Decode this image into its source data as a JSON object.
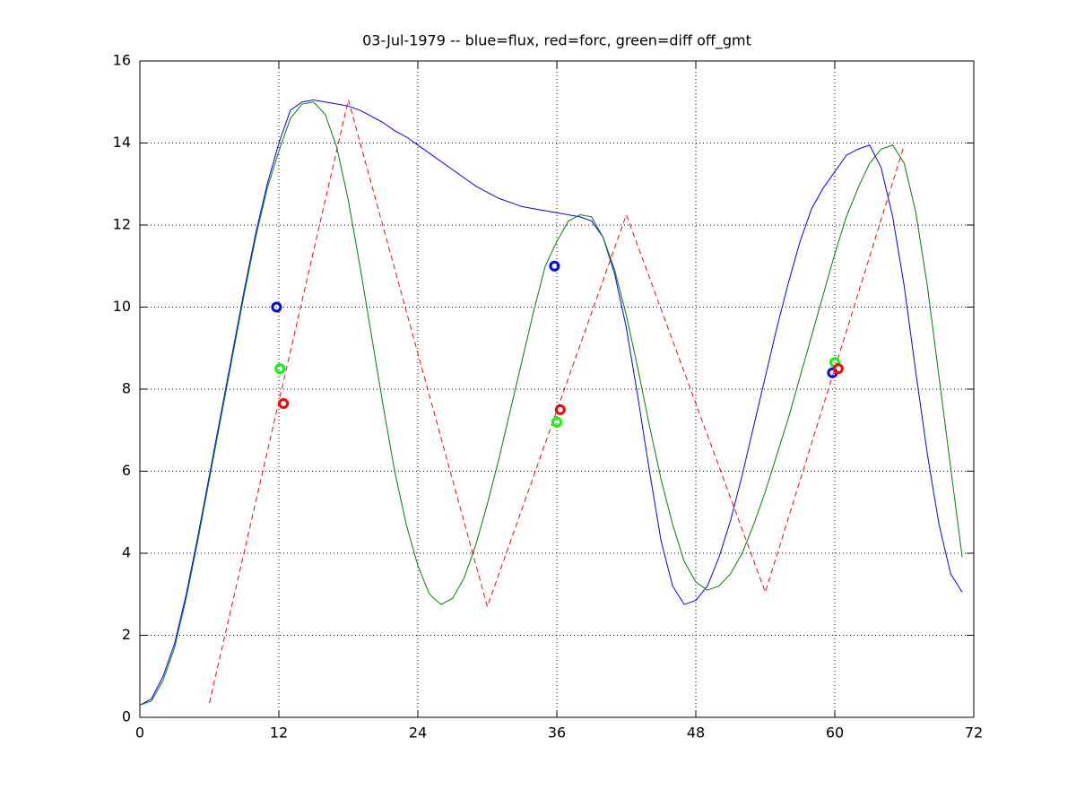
{
  "chart_data": {
    "type": "line",
    "title": "03-Jul-1979 -- blue=flux, red=forc, green=diff off_gmt",
    "x": [
      0,
      1,
      2,
      3,
      4,
      5,
      6,
      7,
      8,
      9,
      10,
      11,
      12,
      13,
      14,
      15,
      16,
      17,
      18,
      19,
      20,
      21,
      22,
      23,
      24,
      25,
      26,
      27,
      28,
      29,
      30,
      31,
      32,
      33,
      34,
      35,
      36,
      37,
      38,
      39,
      40,
      41,
      42,
      43,
      44,
      45,
      46,
      47,
      48,
      49,
      50,
      51,
      52,
      53,
      54,
      55,
      56,
      57,
      58,
      59,
      60,
      61,
      62,
      63,
      64,
      65,
      66,
      67,
      68,
      69,
      70,
      71
    ],
    "series": [
      {
        "color": "#0000ff",
        "style": "solid",
        "values": [
          0.3,
          0.45,
          1.0,
          1.8,
          3.0,
          4.4,
          5.9,
          7.4,
          8.9,
          10.4,
          11.8,
          13.0,
          14.0,
          14.8,
          15.0,
          15.05,
          15.0,
          14.95,
          14.9,
          14.8,
          14.65,
          14.5,
          14.3,
          14.15,
          13.95,
          13.75,
          13.55,
          13.35,
          13.15,
          12.95,
          12.8,
          12.65,
          12.55,
          12.45,
          12.4,
          12.35,
          12.3,
          12.25,
          12.2,
          12.1,
          11.7,
          10.8,
          9.5,
          7.8,
          6.0,
          4.3,
          3.2,
          2.75,
          2.85,
          3.2,
          3.9,
          4.8,
          5.9,
          7.1,
          8.3,
          9.5,
          10.6,
          11.6,
          12.4,
          12.9,
          13.3,
          13.7,
          13.85,
          13.95,
          13.4,
          12.2,
          10.5,
          8.4,
          6.4,
          4.7,
          3.5,
          3.05
        ]
      },
      {
        "color": "#008000",
        "style": "solid",
        "values": [
          0.3,
          0.4,
          0.9,
          1.7,
          2.9,
          4.3,
          5.8,
          7.3,
          8.8,
          10.3,
          11.7,
          12.9,
          13.8,
          14.6,
          14.95,
          15.0,
          14.7,
          13.9,
          12.6,
          11.0,
          9.3,
          7.6,
          6.0,
          4.7,
          3.7,
          3.0,
          2.75,
          2.9,
          3.4,
          4.2,
          5.2,
          6.3,
          7.5,
          8.7,
          9.9,
          11.0,
          11.6,
          12.1,
          12.25,
          12.2,
          11.7,
          10.9,
          9.8,
          8.5,
          7.1,
          5.8,
          4.7,
          3.8,
          3.3,
          3.1,
          3.2,
          3.5,
          4.0,
          4.7,
          5.5,
          6.4,
          7.3,
          8.3,
          9.3,
          10.3,
          11.3,
          12.2,
          12.9,
          13.5,
          13.85,
          13.95,
          13.5,
          12.3,
          10.5,
          8.3,
          6.1,
          3.9
        ]
      },
      {
        "color": "#ff0000",
        "style": "dashed",
        "x": [
          6,
          18,
          30,
          42,
          54,
          66
        ],
        "values": [
          0.35,
          15.05,
          2.7,
          12.25,
          3.05,
          13.95
        ]
      }
    ],
    "markers": [
      {
        "color": "#0000ff",
        "x": [
          11.8,
          35.8,
          59.8
        ],
        "values": [
          10.0,
          11.0,
          8.4
        ]
      },
      {
        "color": "#00ff00",
        "x": [
          12.1,
          36.0,
          60.0
        ],
        "values": [
          8.5,
          7.2,
          8.65
        ]
      },
      {
        "color": "#ff0000",
        "x": [
          12.4,
          36.3,
          60.3
        ],
        "values": [
          7.65,
          7.5,
          8.5
        ]
      }
    ],
    "xlim": [
      0,
      72
    ],
    "xticks": [
      0,
      12,
      24,
      36,
      48,
      60,
      72
    ],
    "ylim": [
      0,
      16
    ],
    "yticks": [
      0,
      2,
      4,
      6,
      8,
      10,
      12,
      14,
      16
    ],
    "grid": true
  }
}
